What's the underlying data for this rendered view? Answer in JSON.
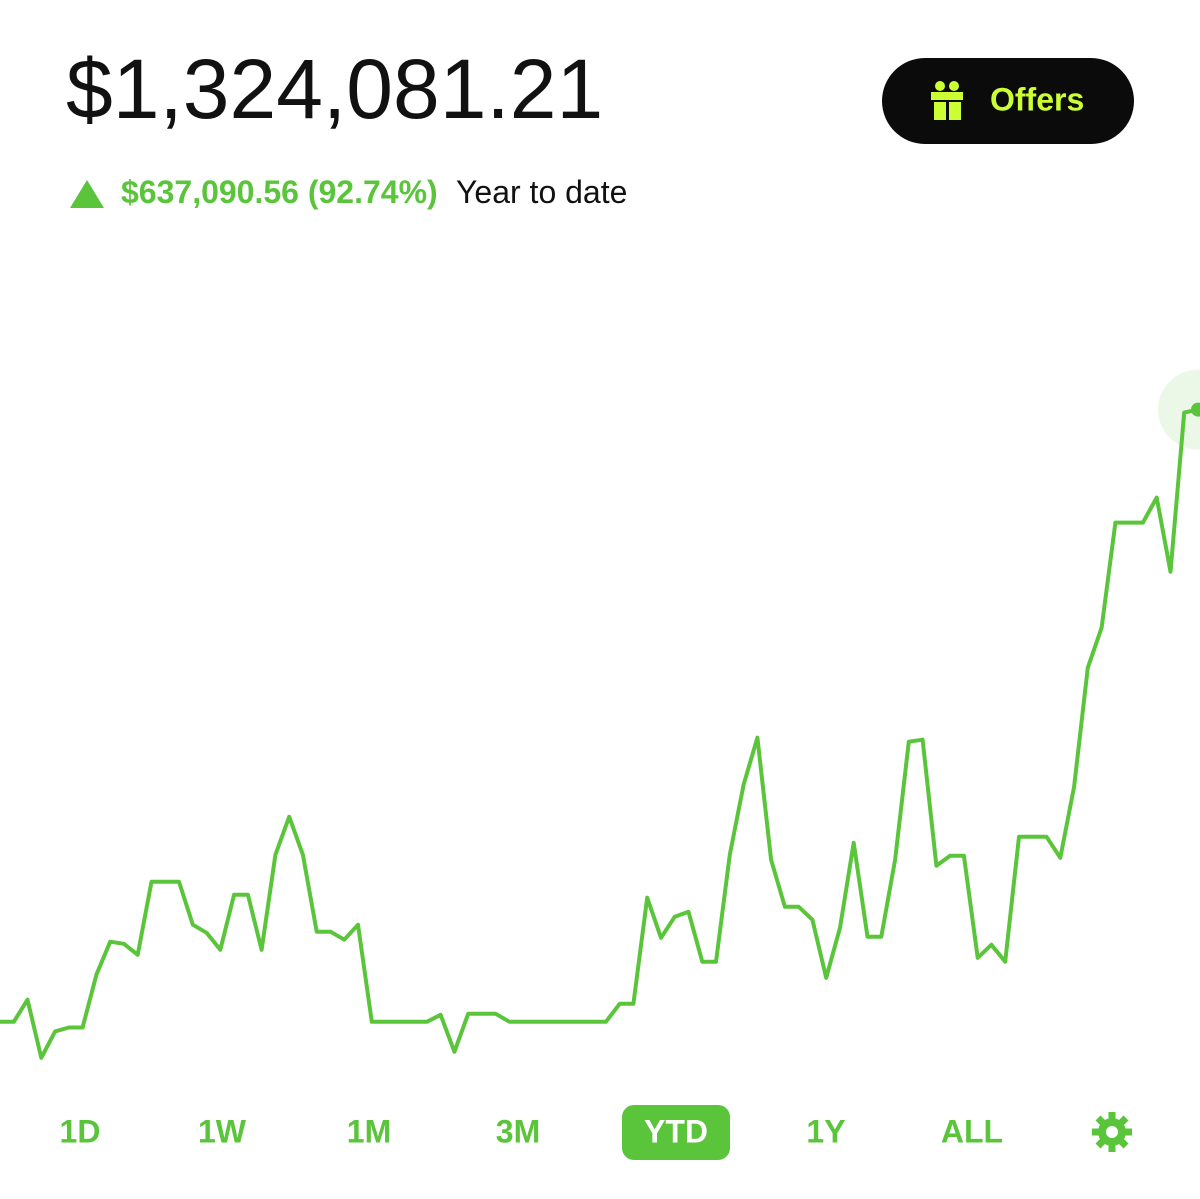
{
  "header": {
    "balance": "$1,324,081.21",
    "change": "$637,090.56 (92.74%)",
    "period": "Year to date",
    "offers": "Offers"
  },
  "chart_data": {
    "type": "line",
    "color": "#5ac53b",
    "ylim": [
      616000,
      1511000
    ],
    "values": [
      687000,
      687000,
      710000,
      649500,
      677000,
      681000,
      681000,
      736000,
      770300,
      768200,
      756700,
      832700,
      832700,
      832700,
      788000,
      779600,
      761900,
      819200,
      819200,
      761900,
      860800,
      900400,
      860800,
      780700,
      780700,
      772400,
      788000,
      687000,
      687000,
      687000,
      687000,
      687000,
      694300,
      655800,
      695300,
      695300,
      695300,
      687000,
      687000,
      687000,
      687000,
      687000,
      687000,
      687000,
      687000,
      705700,
      705700,
      816100,
      774400,
      796300,
      801500,
      749500,
      749500,
      860800,
      933700,
      982600,
      855600,
      806700,
      806700,
      793200,
      732800,
      784800,
      873300,
      775500,
      775500,
      855600,
      978500,
      980600,
      849400,
      859800,
      859800,
      753600,
      767100,
      749500,
      879600,
      879600,
      879600,
      857700,
      931600,
      1055500,
      1097100,
      1206500,
      1206500,
      1206500,
      1232500,
      1155400,
      1321000,
      1324081
    ]
  },
  "tabs": [
    "1D",
    "1W",
    "1M",
    "3M",
    "YTD",
    "1Y",
    "ALL"
  ],
  "selected_tab": 4
}
